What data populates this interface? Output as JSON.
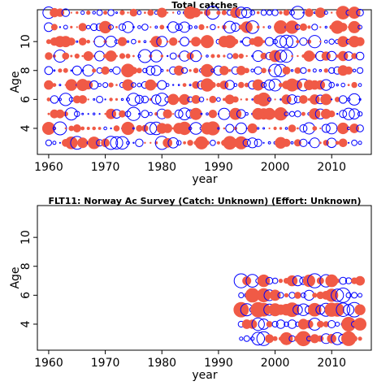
{
  "colors": {
    "positive": "#f05a46",
    "negative": "#0000ff"
  },
  "chart_data": [
    {
      "type": "scatter",
      "title": "Total catches",
      "xlabel": "year",
      "ylabel": "Age",
      "xlim": [
        1958,
        2017
      ],
      "ylim": [
        2.2,
        12.2
      ],
      "xticks": [
        1960,
        1970,
        1980,
        1990,
        2000,
        2010
      ],
      "yticks": [
        4,
        6,
        8,
        10
      ],
      "x_start": 1960,
      "x_end": 2015,
      "ages": [
        3,
        4,
        5,
        6,
        7,
        8,
        9,
        10,
        11,
        12
      ]
    },
    {
      "type": "scatter",
      "title": "FLT11: Norway Ac Survey (Catch: Unknown) (Effort: Unknown)",
      "xlabel": "year",
      "ylabel": "Age",
      "xlim": [
        1958,
        2017
      ],
      "ylim": [
        2.2,
        12.2
      ],
      "xticks": [
        1960,
        1970,
        1980,
        1990,
        2000,
        2010
      ],
      "yticks": [
        4,
        6,
        8,
        10
      ],
      "x_start": 1994,
      "x_end": 2015,
      "ages": [
        3,
        4,
        5,
        6,
        7
      ]
    }
  ]
}
